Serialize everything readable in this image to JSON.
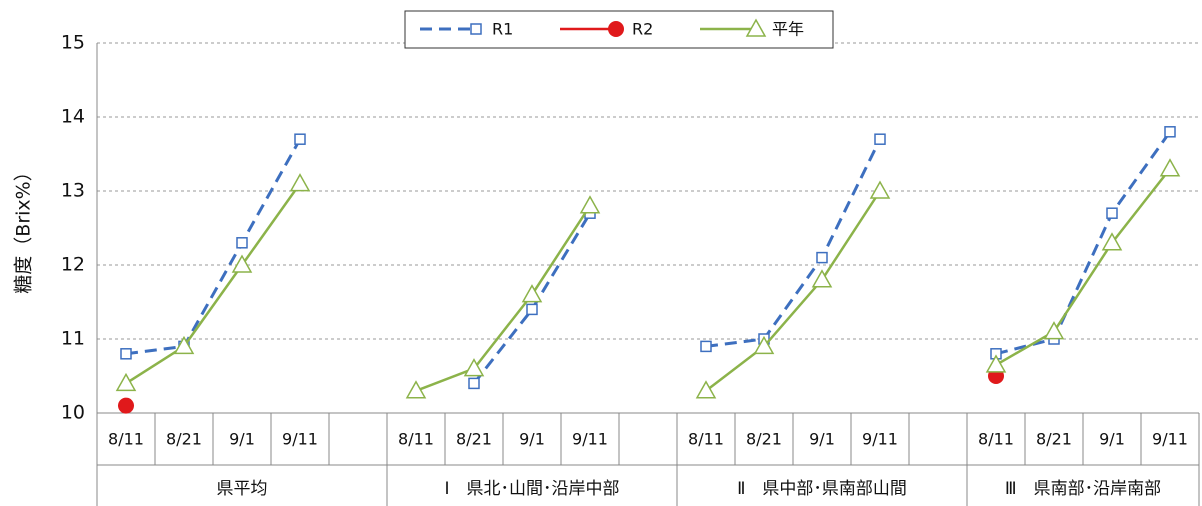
{
  "chart_data": {
    "type": "line",
    "y_label": "糖度（Brix%）",
    "categories": [
      "8/11",
      "8/21",
      "9/1",
      "9/11",
      null,
      "8/11",
      "8/21",
      "9/1",
      "9/11",
      null,
      "8/11",
      "8/21",
      "9/1",
      "9/11",
      null,
      "8/11",
      "8/21",
      "9/1",
      "9/11"
    ],
    "groups": [
      "県平均",
      "Ⅰ　県北･山間･沿岸中部",
      "Ⅱ　県中部･県南部山間",
      "Ⅲ　県南部･沿岸南部"
    ],
    "series": [
      {
        "name": "R1",
        "color": "#3d6fbf",
        "values": [
          10.8,
          10.9,
          12.3,
          13.7,
          null,
          null,
          10.4,
          11.4,
          12.7,
          null,
          10.9,
          11.0,
          12.1,
          13.7,
          null,
          10.8,
          11.0,
          12.7,
          13.8
        ]
      },
      {
        "name": "R2",
        "color": "#e0191b",
        "values": [
          10.1,
          null,
          null,
          null,
          null,
          null,
          null,
          null,
          null,
          null,
          null,
          null,
          null,
          null,
          null,
          10.5,
          null,
          null,
          null
        ]
      },
      {
        "name": "平年",
        "color": "#8cb34a",
        "values": [
          10.4,
          10.9,
          12.0,
          13.1,
          null,
          10.3,
          10.6,
          11.6,
          12.8,
          null,
          10.3,
          10.9,
          11.8,
          13.0,
          null,
          10.65,
          11.1,
          12.3,
          13.3
        ]
      }
    ],
    "ylim": [
      10,
      15
    ],
    "yticks": [
      10,
      11,
      12,
      13,
      14,
      15
    ],
    "grid": true,
    "legend": "top"
  }
}
